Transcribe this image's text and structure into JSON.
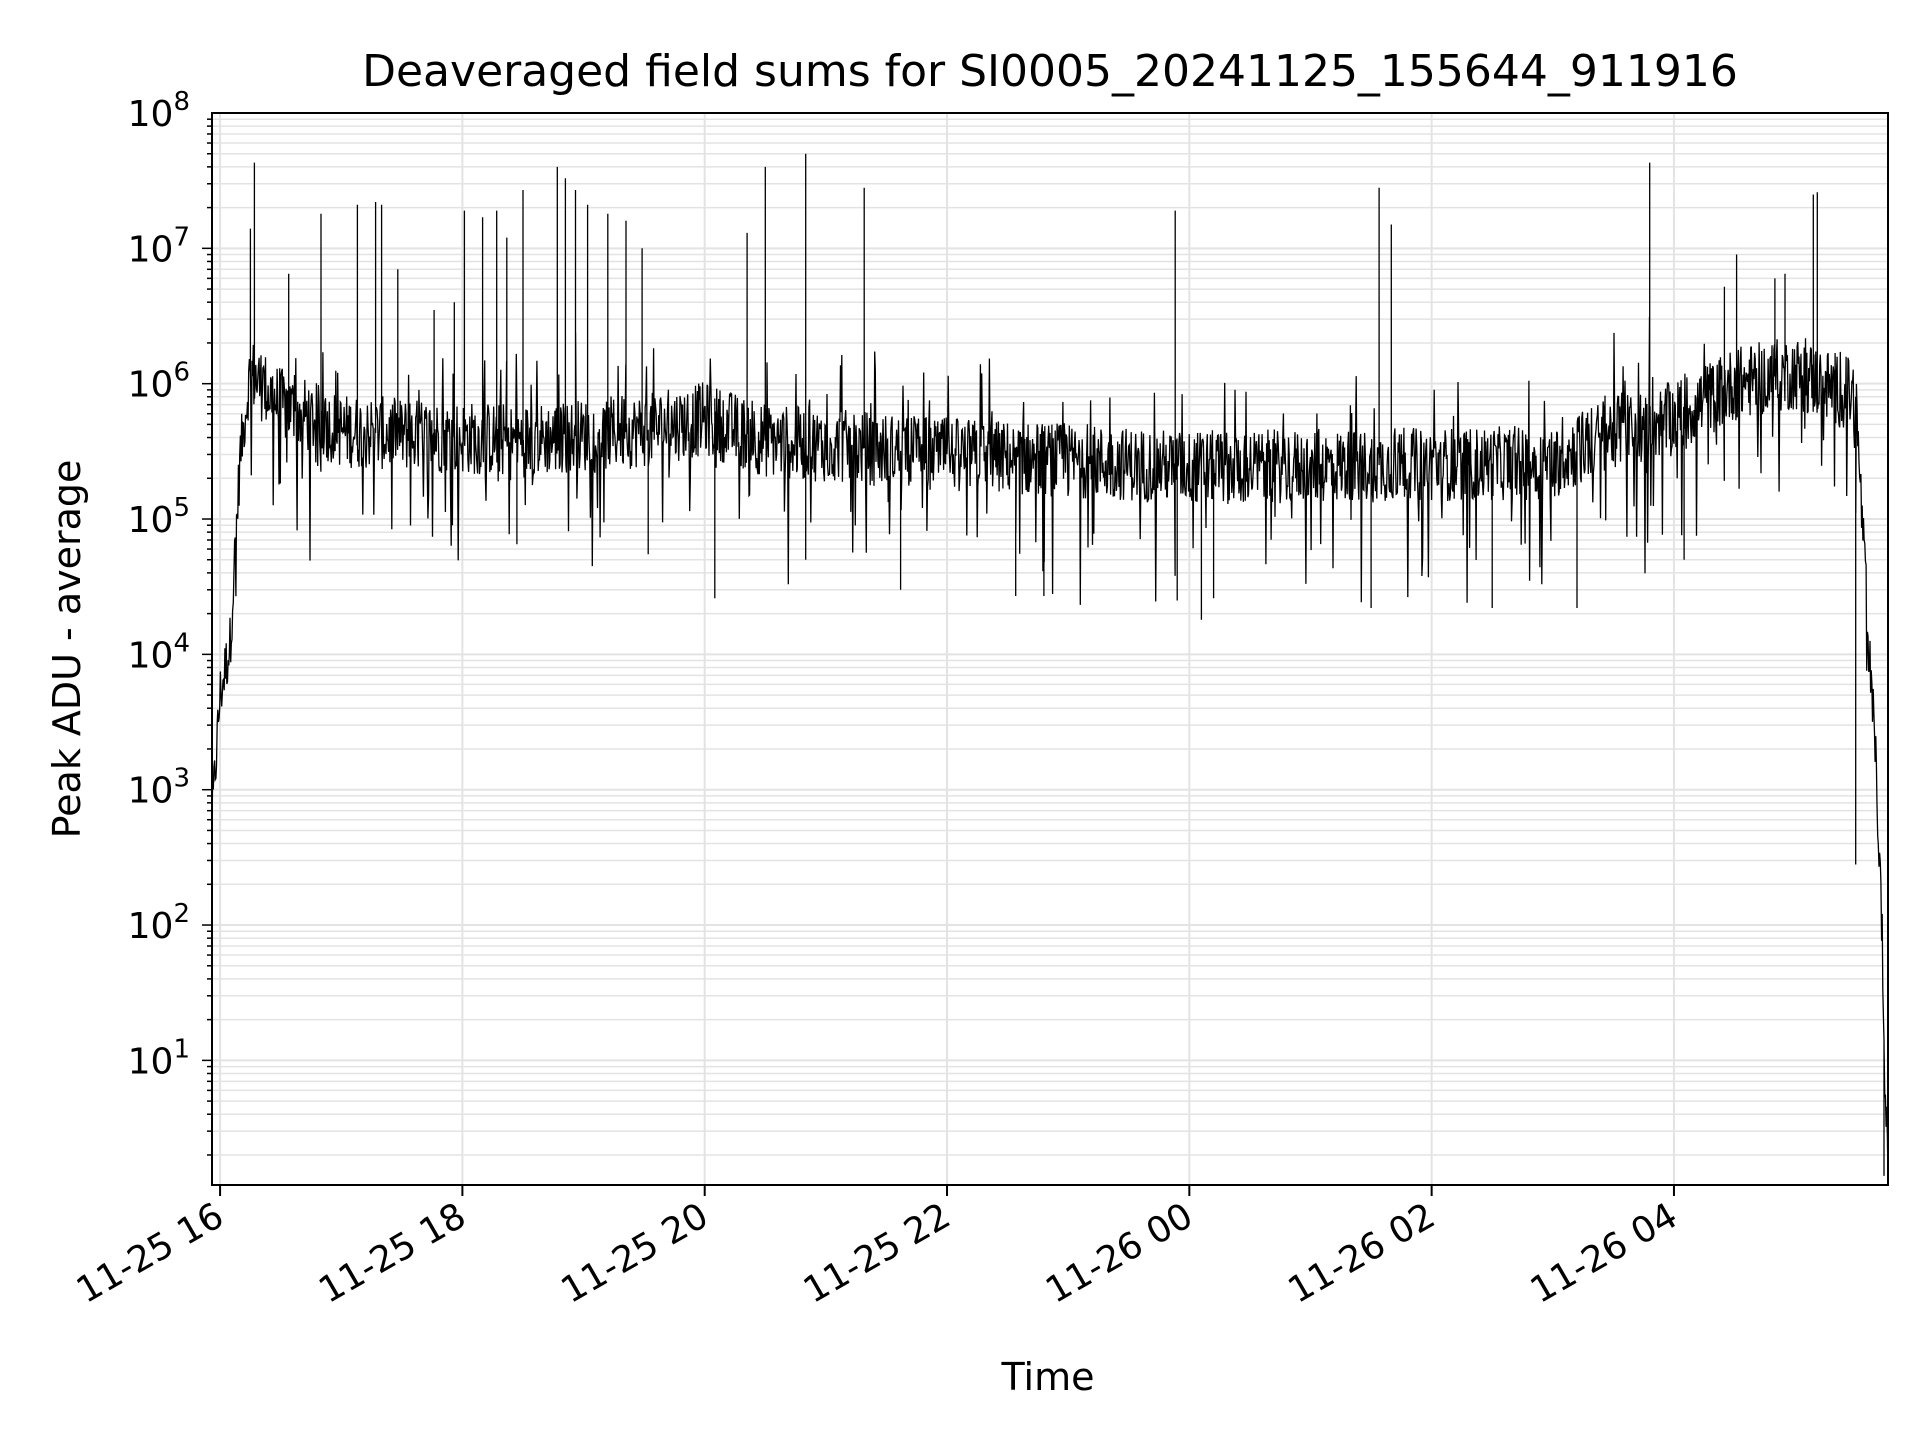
{
  "chart_data": {
    "type": "line",
    "title": "Deaveraged field sums for SI0005_20241125_155644_911916",
    "xlabel": "Time",
    "ylabel": "Peak ADU - average",
    "y_scale": "log",
    "ylim": [
      1.2,
      100000000
    ],
    "xlim": [
      "2024-11-25 15:56",
      "2024-11-26 05:46"
    ],
    "grid": true,
    "grid_minor_y": true,
    "x_ticks": [
      {
        "label": "11-25 16",
        "t": "2024-11-25 16:00"
      },
      {
        "label": "11-25 18",
        "t": "2024-11-25 18:00"
      },
      {
        "label": "11-25 20",
        "t": "2024-11-25 20:00"
      },
      {
        "label": "11-25 22",
        "t": "2024-11-25 22:00"
      },
      {
        "label": "11-26 00",
        "t": "2024-11-26 00:00"
      },
      {
        "label": "11-26 02",
        "t": "2024-11-26 02:00"
      },
      {
        "label": "11-26 04",
        "t": "2024-11-26 04:00"
      }
    ],
    "y_ticks": [
      {
        "base": "10",
        "exp": "1",
        "value": 10
      },
      {
        "base": "10",
        "exp": "2",
        "value": 100
      },
      {
        "base": "10",
        "exp": "3",
        "value": 1000
      },
      {
        "base": "10",
        "exp": "4",
        "value": 10000
      },
      {
        "base": "10",
        "exp": "5",
        "value": 100000
      },
      {
        "base": "10",
        "exp": "6",
        "value": 1000000
      },
      {
        "base": "10",
        "exp": "7",
        "value": 10000000
      },
      {
        "base": "10",
        "exp": "8",
        "value": 100000000
      }
    ],
    "line_color": "#000000",
    "series": [
      {
        "baseline_trend": [
          {
            "t": "2024-11-25 15:56",
            "v": 600
          },
          {
            "t": "2024-11-25 16:00",
            "v": 5000
          },
          {
            "t": "2024-11-25 16:05",
            "v": 12000
          },
          {
            "t": "2024-11-25 16:10",
            "v": 300000
          },
          {
            "t": "2024-11-25 16:15",
            "v": 1200000
          },
          {
            "t": "2024-11-25 16:30",
            "v": 700000
          },
          {
            "t": "2024-11-25 17:00",
            "v": 450000
          },
          {
            "t": "2024-11-25 17:30",
            "v": 420000
          },
          {
            "t": "2024-11-25 18:30",
            "v": 380000
          },
          {
            "t": "2024-11-25 19:30",
            "v": 450000
          },
          {
            "t": "2024-11-25 20:00",
            "v": 550000
          },
          {
            "t": "2024-11-25 20:30",
            "v": 380000
          },
          {
            "t": "2024-11-25 22:00",
            "v": 300000
          },
          {
            "t": "2024-11-25 23:00",
            "v": 270000
          },
          {
            "t": "2024-11-26 00:00",
            "v": 240000
          },
          {
            "t": "2024-11-26 01:30",
            "v": 250000
          },
          {
            "t": "2024-11-26 03:00",
            "v": 260000
          },
          {
            "t": "2024-11-26 03:30",
            "v": 450000
          },
          {
            "t": "2024-11-26 04:00",
            "v": 550000
          },
          {
            "t": "2024-11-26 04:30",
            "v": 1000000
          },
          {
            "t": "2024-11-26 05:00",
            "v": 1200000
          },
          {
            "t": "2024-11-26 05:30",
            "v": 800000
          },
          {
            "t": "2024-11-26 05:34",
            "v": 60000
          },
          {
            "t": "2024-11-26 05:37",
            "v": 8000
          },
          {
            "t": "2024-11-26 05:40",
            "v": 1500
          },
          {
            "t": "2024-11-26 05:43",
            "v": 100
          },
          {
            "t": "2024-11-26 05:45",
            "v": 2
          }
        ],
        "spikes": [
          {
            "t": "2024-11-25 16:15",
            "v": 14000000
          },
          {
            "t": "2024-11-25 16:17",
            "v": 43000000
          },
          {
            "t": "2024-11-25 16:34",
            "v": 6500000
          },
          {
            "t": "2024-11-25 16:50",
            "v": 18000000
          },
          {
            "t": "2024-11-25 17:08",
            "v": 21000000
          },
          {
            "t": "2024-11-25 17:17",
            "v": 22000000
          },
          {
            "t": "2024-11-25 17:20",
            "v": 21000000
          },
          {
            "t": "2024-11-25 17:28",
            "v": 7000000
          },
          {
            "t": "2024-11-25 17:46",
            "v": 3500000
          },
          {
            "t": "2024-11-25 17:56",
            "v": 4000000
          },
          {
            "t": "2024-11-25 18:01",
            "v": 19000000
          },
          {
            "t": "2024-11-25 18:10",
            "v": 17000000
          },
          {
            "t": "2024-11-25 18:17",
            "v": 19000000
          },
          {
            "t": "2024-11-25 18:22",
            "v": 12000000
          },
          {
            "t": "2024-11-25 18:30",
            "v": 27000000
          },
          {
            "t": "2024-11-25 18:47",
            "v": 40000000
          },
          {
            "t": "2024-11-25 18:51",
            "v": 33000000
          },
          {
            "t": "2024-11-25 18:56",
            "v": 27000000
          },
          {
            "t": "2024-11-25 19:02",
            "v": 21000000
          },
          {
            "t": "2024-11-25 19:12",
            "v": 18000000
          },
          {
            "t": "2024-11-25 19:21",
            "v": 16000000
          },
          {
            "t": "2024-11-25 19:29",
            "v": 10000000
          },
          {
            "t": "2024-11-25 20:21",
            "v": 13000000
          },
          {
            "t": "2024-11-25 20:30",
            "v": 40000000
          },
          {
            "t": "2024-11-25 20:50",
            "v": 50000000
          },
          {
            "t": "2024-11-25 21:19",
            "v": 28000000
          },
          {
            "t": "2024-11-25 23:53",
            "v": 19000000
          },
          {
            "t": "2024-11-26 01:34",
            "v": 28000000
          },
          {
            "t": "2024-11-26 01:40",
            "v": 15000000
          },
          {
            "t": "2024-11-26 03:48",
            "v": 43000000
          },
          {
            "t": "2024-11-26 04:25",
            "v": 5200000
          },
          {
            "t": "2024-11-26 04:31",
            "v": 9000000
          },
          {
            "t": "2024-11-26 04:50",
            "v": 6000000
          },
          {
            "t": "2024-11-26 05:09",
            "v": 25000000
          },
          {
            "t": "2024-11-26 05:11",
            "v": 26000000
          },
          {
            "t": "2024-11-26 04:55",
            "v": 6500000
          }
        ],
        "dips": [
          {
            "t": "2024-11-25 18:27",
            "v": 65000
          },
          {
            "t": "2024-11-25 19:32",
            "v": 55000
          },
          {
            "t": "2024-11-25 20:05",
            "v": 26000
          },
          {
            "t": "2024-11-25 20:50",
            "v": 50000
          },
          {
            "t": "2024-11-25 21:37",
            "v": 30000
          },
          {
            "t": "2024-11-25 22:34",
            "v": 27000
          },
          {
            "t": "2024-11-25 22:48",
            "v": 27000
          },
          {
            "t": "2024-11-25 23:54",
            "v": 25000
          },
          {
            "t": "2024-11-26 00:06",
            "v": 18000
          },
          {
            "t": "2024-11-26 00:12",
            "v": 26000
          },
          {
            "t": "2024-11-26 01:30",
            "v": 22000
          },
          {
            "t": "2024-11-26 02:30",
            "v": 22000
          },
          {
            "t": "2024-11-26 03:12",
            "v": 22000
          },
          {
            "t": "2024-11-26 04:05",
            "v": 50000
          },
          {
            "t": "2024-11-26 05:30",
            "v": 280
          },
          {
            "t": "2024-11-26 05:44",
            "v": 1.4
          }
        ]
      }
    ]
  }
}
